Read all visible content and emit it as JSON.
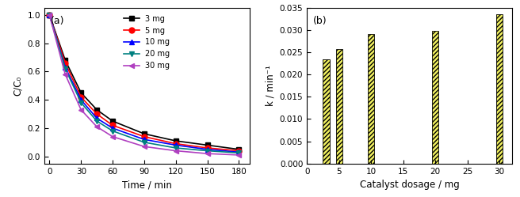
{
  "chart_data": [
    {
      "type": "line",
      "title": "(a)",
      "x_label": "Time / min",
      "y_label": "C/C₀",
      "x": [
        0,
        15,
        30,
        45,
        60,
        90,
        120,
        150,
        180
      ],
      "series": [
        {
          "name": "3 mg",
          "color": "#000000",
          "marker": "square",
          "values": [
            1.0,
            0.68,
            0.45,
            0.33,
            0.25,
            0.16,
            0.11,
            0.08,
            0.05
          ]
        },
        {
          "name": "5 mg",
          "color": "#ff0000",
          "marker": "circle",
          "values": [
            1.0,
            0.66,
            0.42,
            0.3,
            0.22,
            0.14,
            0.09,
            0.06,
            0.04
          ]
        },
        {
          "name": "10 mg",
          "color": "#0000ff",
          "marker": "triangle_up",
          "values": [
            1.0,
            0.63,
            0.4,
            0.27,
            0.2,
            0.12,
            0.08,
            0.05,
            0.03
          ]
        },
        {
          "name": "20 mg",
          "color": "#008080",
          "marker": "triangle_down",
          "values": [
            1.0,
            0.62,
            0.38,
            0.25,
            0.18,
            0.1,
            0.06,
            0.04,
            0.025
          ]
        },
        {
          "name": "30 mg",
          "color": "#b040c0",
          "marker": "triangle_left",
          "values": [
            1.0,
            0.58,
            0.33,
            0.21,
            0.14,
            0.07,
            0.04,
            0.02,
            0.01
          ]
        }
      ],
      "xlim": [
        -5,
        190
      ],
      "xticks": [
        0,
        30,
        60,
        90,
        120,
        150,
        180
      ],
      "ylim": [
        -0.05,
        1.05
      ],
      "yticks": [
        {
          "value": 0.0,
          "label": "0.0"
        },
        0.2,
        0.4,
        0.6,
        0.8,
        {
          "value": 1.0,
          "label": "1.0"
        }
      ],
      "legend": "upper center"
    },
    {
      "type": "bar",
      "title": "(b)",
      "x_label": "Catalyst dosage / mg",
      "y_label": "k / min⁻¹",
      "x": [
        3,
        5,
        10,
        20,
        30
      ],
      "values": [
        0.0235,
        0.0258,
        0.0291,
        0.0299,
        0.0336
      ],
      "color": "#f0f060",
      "xlim": [
        0,
        32
      ],
      "xticks": [
        0,
        5,
        10,
        15,
        20,
        25,
        30
      ],
      "ylim": [
        0,
        0.035
      ],
      "yticks": [
        {
          "value": 0.0,
          "label": "0.000"
        },
        {
          "value": 0.005,
          "label": "0.005"
        },
        {
          "value": 0.01,
          "label": "0.010"
        },
        {
          "value": 0.015,
          "label": "0.015"
        },
        {
          "value": 0.02,
          "label": "0.020"
        },
        {
          "value": 0.025,
          "label": "0.025"
        },
        {
          "value": 0.03,
          "label": "0.030"
        },
        {
          "value": 0.035,
          "label": "0.035"
        }
      ]
    }
  ]
}
